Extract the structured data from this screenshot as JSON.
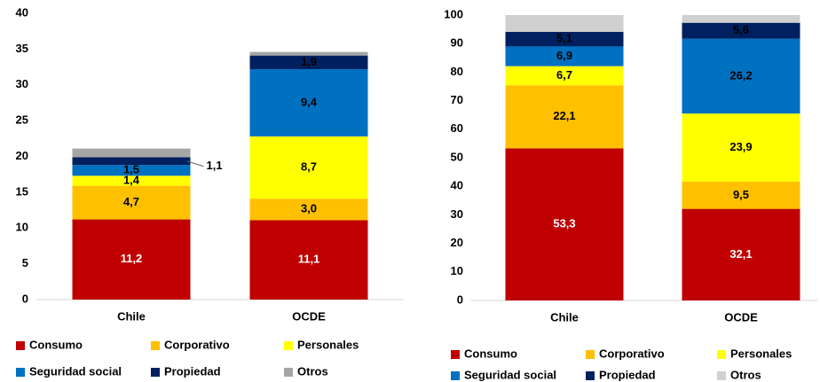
{
  "chart_data": [
    {
      "type": "stacked_bar",
      "categories": [
        "Chile",
        "OCDE"
      ],
      "ylim": [
        0,
        40
      ],
      "yticks": [
        0,
        5,
        10,
        15,
        20,
        25,
        30,
        35,
        40
      ],
      "series": [
        {
          "name": "Consumo",
          "color": "#c00000",
          "values": [
            11.2,
            11.1
          ],
          "value_labels": [
            "11,2",
            "11,1"
          ]
        },
        {
          "name": "Corporativo",
          "color": "#ffc000",
          "values": [
            4.7,
            3.0
          ],
          "value_labels": [
            "4,7",
            "3,0"
          ]
        },
        {
          "name": "Personales",
          "color": "#ffff00",
          "values": [
            1.4,
            8.7
          ],
          "value_labels": [
            "1,4",
            "8,7"
          ]
        },
        {
          "name": "Seguridad social",
          "color": "#0070c0",
          "values": [
            1.5,
            9.4
          ],
          "value_labels": [
            "1,5",
            "9,4"
          ]
        },
        {
          "name": "Propiedad",
          "color": "#002060",
          "values": [
            1.1,
            1.9
          ],
          "value_labels": [
            "1,1",
            "1,9"
          ]
        },
        {
          "name": "Otros",
          "color": "#a6a6a6",
          "values": [
            1.2,
            0.5
          ]
        }
      ]
    },
    {
      "type": "stacked_bar",
      "categories": [
        "Chile",
        "OCDE"
      ],
      "ylim": [
        0,
        100
      ],
      "yticks": [
        0,
        10,
        20,
        30,
        40,
        50,
        60,
        70,
        80,
        90,
        100
      ],
      "series": [
        {
          "name": "Consumo",
          "color": "#c00000",
          "values": [
            53.3,
            32.1
          ],
          "value_labels": [
            "53,3",
            "32,1"
          ]
        },
        {
          "name": "Corporativo",
          "color": "#ffc000",
          "values": [
            22.1,
            9.5
          ],
          "value_labels": [
            "22,1",
            "9,5"
          ]
        },
        {
          "name": "Personales",
          "color": "#ffff00",
          "values": [
            6.7,
            23.9
          ],
          "value_labels": [
            "6,7",
            "23,9"
          ]
        },
        {
          "name": "Seguridad social",
          "color": "#0070c0",
          "values": [
            6.9,
            26.2
          ],
          "value_labels": [
            "6,9",
            "26,2"
          ]
        },
        {
          "name": "Propiedad",
          "color": "#002060",
          "values": [
            5.1,
            5.6
          ],
          "value_labels": [
            "5,1",
            "5,6"
          ]
        },
        {
          "name": "Otros",
          "color": "#d0d0d0",
          "values": [
            5.9,
            2.7
          ]
        }
      ]
    }
  ]
}
